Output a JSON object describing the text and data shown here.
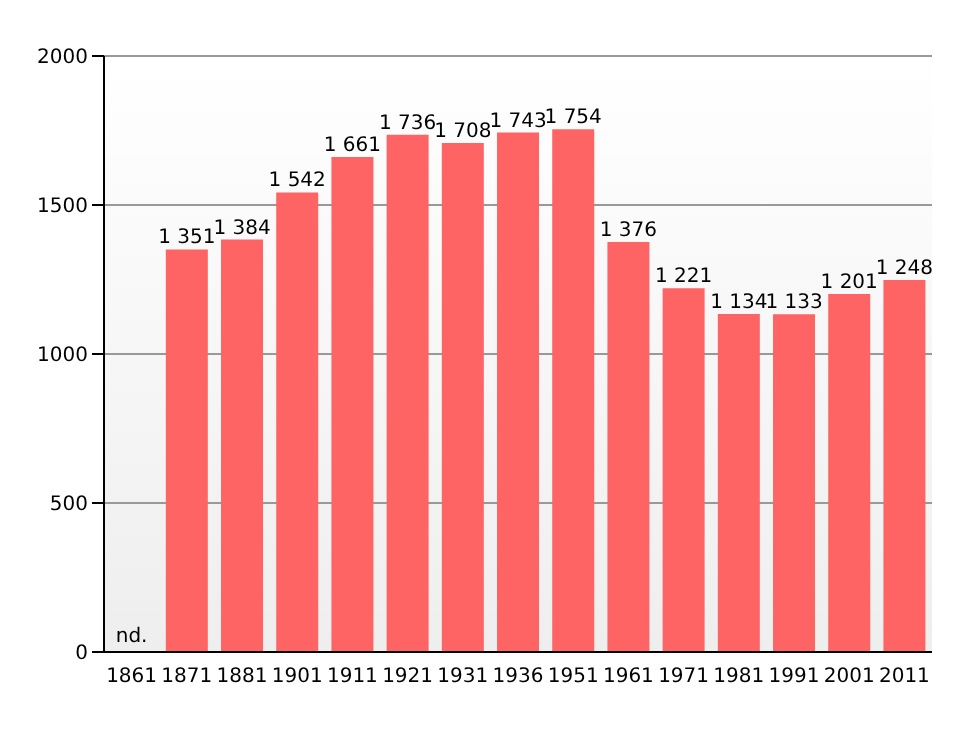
{
  "chart_data": {
    "type": "bar",
    "categories": [
      "1861",
      "1871",
      "1881",
      "1901",
      "1911",
      "1921",
      "1931",
      "1936",
      "1951",
      "1961",
      "1971",
      "1981",
      "1991",
      "2001",
      "2011"
    ],
    "values": [
      null,
      1351,
      1384,
      1542,
      1661,
      1736,
      1708,
      1743,
      1754,
      1376,
      1221,
      1134,
      1133,
      1201,
      1248
    ],
    "value_labels": [
      "nd.",
      "1 351",
      "1 384",
      "1 542",
      "1 661",
      "1 736",
      "1 708",
      "1 743",
      "1 754",
      "1 376",
      "1 221",
      "1 134",
      "1 133",
      "1 201",
      "1 248"
    ],
    "color": "#ff6464",
    "ylim": [
      0,
      2000
    ],
    "yticks": [
      0,
      500,
      1000,
      1500,
      2000
    ],
    "grid": "y"
  }
}
